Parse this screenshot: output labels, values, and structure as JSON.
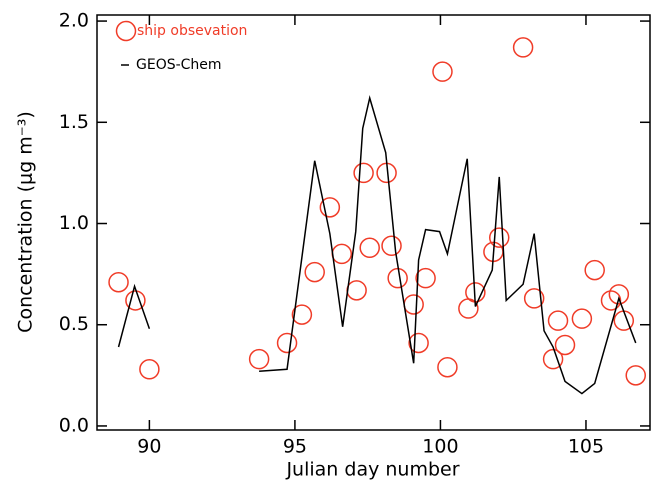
{
  "chart_data": {
    "type": "scatter",
    "xlabel": "Julian day number",
    "ylabel": "Concentration (μg m⁻³)",
    "xlim": [
      88.2,
      107.2
    ],
    "ylim": [
      -0.02,
      2.03
    ],
    "xticks": [
      90,
      95,
      100,
      105
    ],
    "yticks": [
      {
        "value": 0,
        "label": "0.0"
      },
      0.5,
      {
        "value": 1,
        "label": "1.0"
      },
      1.5,
      {
        "value": 2,
        "label": "2.0"
      }
    ],
    "grid": false,
    "legend": "upper left",
    "series": [
      {
        "name": "ship obsevation",
        "type": "scatter",
        "color": "#f03c28",
        "x": [
          88.94,
          89.52,
          90.0,
          93.77,
          94.73,
          95.24,
          95.68,
          96.2,
          96.61,
          97.12,
          97.36,
          97.57,
          98.15,
          98.32,
          98.53,
          99.08,
          99.25,
          99.49,
          100.07,
          100.24,
          100.96,
          101.2,
          101.82,
          102.02,
          102.84,
          103.22,
          103.87,
          104.04,
          104.28,
          104.86,
          105.3,
          105.86,
          106.13,
          106.3,
          106.71
        ],
        "values": [
          0.71,
          0.62,
          0.28,
          0.33,
          0.41,
          0.55,
          0.76,
          1.08,
          0.85,
          0.67,
          1.25,
          0.88,
          1.25,
          0.89,
          0.73,
          0.6,
          0.41,
          0.73,
          1.75,
          0.29,
          0.58,
          0.66,
          0.86,
          0.93,
          1.87,
          0.63,
          0.33,
          0.52,
          0.4,
          0.53,
          0.77,
          0.62,
          0.65,
          0.52,
          0.25
        ]
      },
      {
        "name": "GEOS-Chem",
        "type": "line",
        "color": "#000000",
        "x": [
          88.94,
          89.49,
          90.0,
          null,
          93.77,
          94.73,
          95.68,
          96.2,
          96.64,
          97.09,
          97.33,
          97.57,
          98.12,
          98.46,
          99.08,
          99.25,
          99.49,
          99.97,
          100.24,
          100.92,
          101.2,
          101.78,
          102.02,
          102.26,
          102.84,
          103.22,
          103.56,
          103.87,
          104.28,
          104.86,
          105.3,
          106.13,
          106.71
        ],
        "values": [
          0.39,
          0.69,
          0.48,
          null,
          0.27,
          0.28,
          1.31,
          0.95,
          0.49,
          0.96,
          1.47,
          1.62,
          1.35,
          0.86,
          0.31,
          0.82,
          0.97,
          0.96,
          0.85,
          1.32,
          0.59,
          0.77,
          1.23,
          0.62,
          0.7,
          0.95,
          0.47,
          0.39,
          0.22,
          0.16,
          0.21,
          0.63,
          0.41
        ]
      }
    ]
  }
}
